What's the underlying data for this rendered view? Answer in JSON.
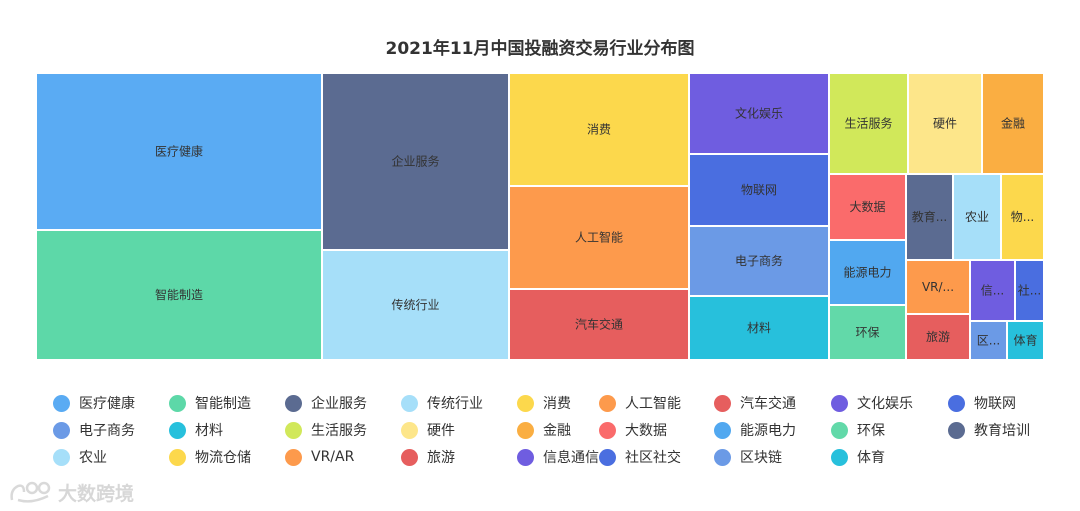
{
  "chart_data": {
    "type": "treemap",
    "title": "2021年11月中国投融资交易行业分布图",
    "items": [
      {
        "name": "医疗健康",
        "value": 17.0,
        "color": "#5aabf3"
      },
      {
        "name": "智能制造",
        "value": 12.6,
        "color": "#5dd8a8"
      },
      {
        "name": "企业服务",
        "value": 10.9,
        "color": "#5b6b91"
      },
      {
        "name": "传统行业",
        "value": 6.0,
        "color": "#a6dff9"
      },
      {
        "name": "消费",
        "value": 6.3,
        "color": "#fcd84c"
      },
      {
        "name": "人工智能",
        "value": 5.6,
        "color": "#fd9a4c"
      },
      {
        "name": "汽车交通",
        "value": 4.3,
        "color": "#e65e5e"
      },
      {
        "name": "文化娱乐",
        "value": 3.5,
        "color": "#6f5de0"
      },
      {
        "name": "物联网",
        "value": 3.1,
        "color": "#4a6ee0"
      },
      {
        "name": "电子商务",
        "value": 3.1,
        "color": "#6b9ae6"
      },
      {
        "name": "材料",
        "value": 2.8,
        "color": "#27c0dc"
      },
      {
        "name": "生活服务",
        "value": 2.1,
        "color": "#d1e85a"
      },
      {
        "name": "硬件",
        "value": 2.1,
        "color": "#fde68a"
      },
      {
        "name": "金融",
        "value": 1.8,
        "color": "#faae42"
      },
      {
        "name": "大数据",
        "value": 1.6,
        "color": "#fa6b6b"
      },
      {
        "name": "能源电力",
        "value": 1.6,
        "color": "#51a8f0"
      },
      {
        "name": "环保",
        "value": 1.3,
        "color": "#62d9a9"
      },
      {
        "name": "教育培训",
        "value": 1.1,
        "color": "#5b6b91"
      },
      {
        "name": "农业",
        "value": 1.1,
        "color": "#a6dff9"
      },
      {
        "name": "物流仓储",
        "value": 1.1,
        "color": "#fcd84c"
      },
      {
        "name": "VR/AR",
        "value": 0.9,
        "color": "#fd9a4c"
      },
      {
        "name": "旅游",
        "value": 0.7,
        "color": "#e65e5e"
      },
      {
        "name": "信息通信",
        "value": 0.9,
        "color": "#6f5de0"
      },
      {
        "name": "社区社交",
        "value": 0.9,
        "color": "#4a6ee0"
      },
      {
        "name": "区块链",
        "value": 0.6,
        "color": "#6b9ae6"
      },
      {
        "name": "体育",
        "value": 0.6,
        "color": "#27c0dc"
      }
    ],
    "legend_position": "bottom"
  },
  "watermark": {
    "text": "大数跨境"
  }
}
